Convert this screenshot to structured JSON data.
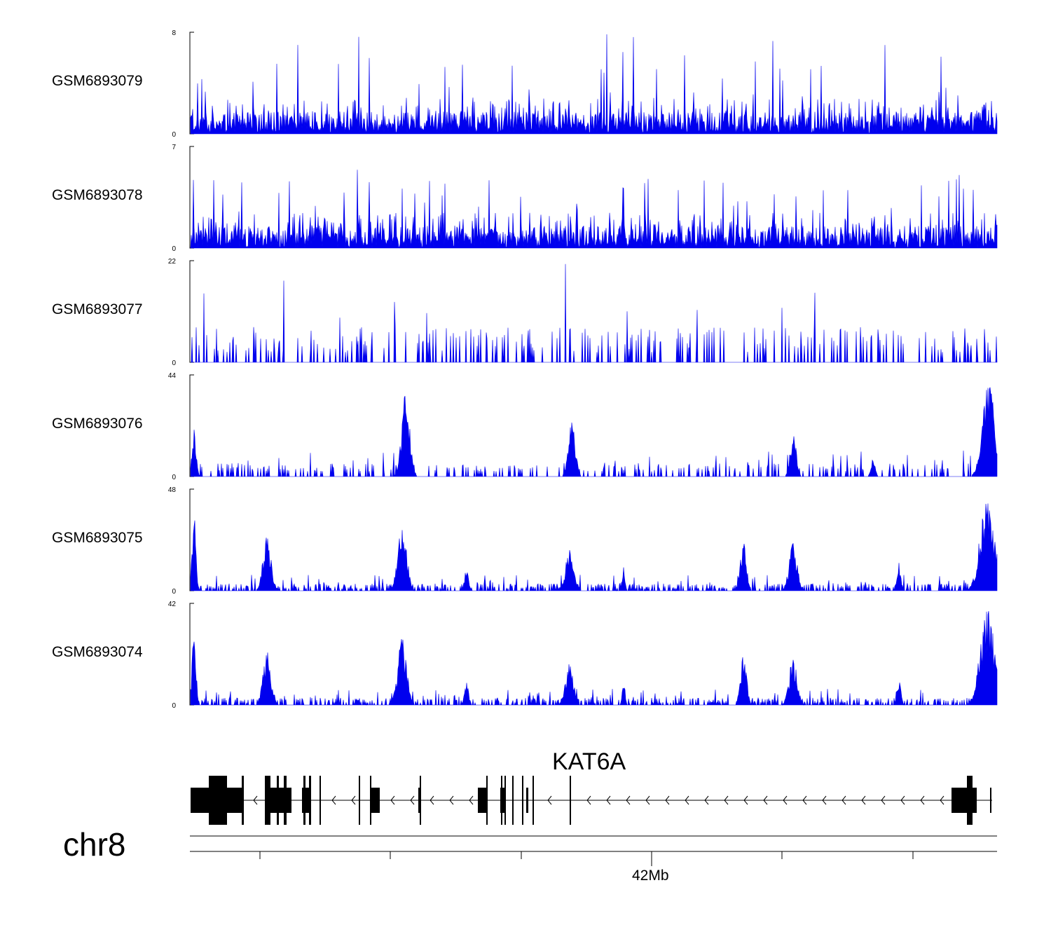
{
  "chart_data": {
    "type": "area",
    "chromosome": "chr8",
    "gene": {
      "name": "KAT6A",
      "strand": "-"
    },
    "x_axis": {
      "tick_label": "42Mb",
      "unit": "Mb"
    },
    "series_color": "#0000ee",
    "tracks": [
      {
        "name": "GSM6893079",
        "ymin": 0,
        "ymax": 8,
        "profile": "noisy"
      },
      {
        "name": "GSM6893078",
        "ymin": 0,
        "ymax": 7,
        "profile": "noisy"
      },
      {
        "name": "GSM6893077",
        "ymin": 0,
        "ymax": 22,
        "profile": "sparse"
      },
      {
        "name": "GSM6893076",
        "ymin": 0,
        "ymax": 44,
        "profile": "sparse-peaks"
      },
      {
        "name": "GSM6893075",
        "ymin": 0,
        "ymax": 48,
        "profile": "peaks"
      },
      {
        "name": "GSM6893074",
        "ymin": 0,
        "ymax": 42,
        "profile": "peaks"
      }
    ]
  }
}
